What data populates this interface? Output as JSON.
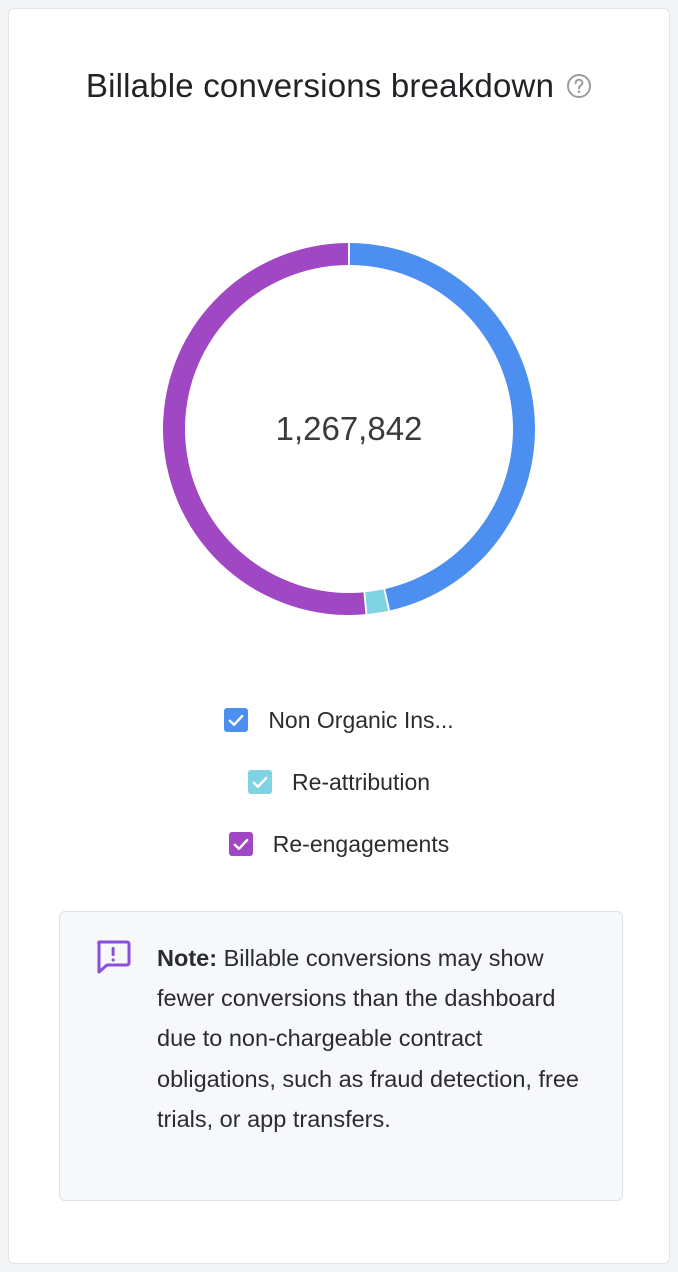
{
  "header": {
    "title": "Billable conversions breakdown",
    "help_icon": "question-circle-icon"
  },
  "chart_data": {
    "type": "pie",
    "variant": "donut",
    "title": "Billable conversions breakdown",
    "center_label": "1,267,842",
    "categories": [
      "Non Organic Ins...",
      "Re-attribution",
      "Re-engagements"
    ],
    "values": [
      590000,
      25000,
      652842
    ],
    "colors": [
      "#4d8ef1",
      "#7fd3e3",
      "#a047c4"
    ],
    "legend_placement": "bottom"
  },
  "legend": {
    "items": [
      {
        "label": "Non Organic Ins...",
        "checked": true,
        "color": "#4d8ef1"
      },
      {
        "label": "Re-attribution",
        "checked": true,
        "color": "#7fd3e3"
      },
      {
        "label": "Re-engagements",
        "checked": true,
        "color": "#a047c4"
      }
    ]
  },
  "note": {
    "icon": "message-alert-icon",
    "icon_color": "#8a4fd8",
    "label": "Note:",
    "text": " Billable conversions may show fewer conversions than the dashboard due to non-chargeable contract obligations, such as fraud detection, free trials, or app transfers."
  }
}
